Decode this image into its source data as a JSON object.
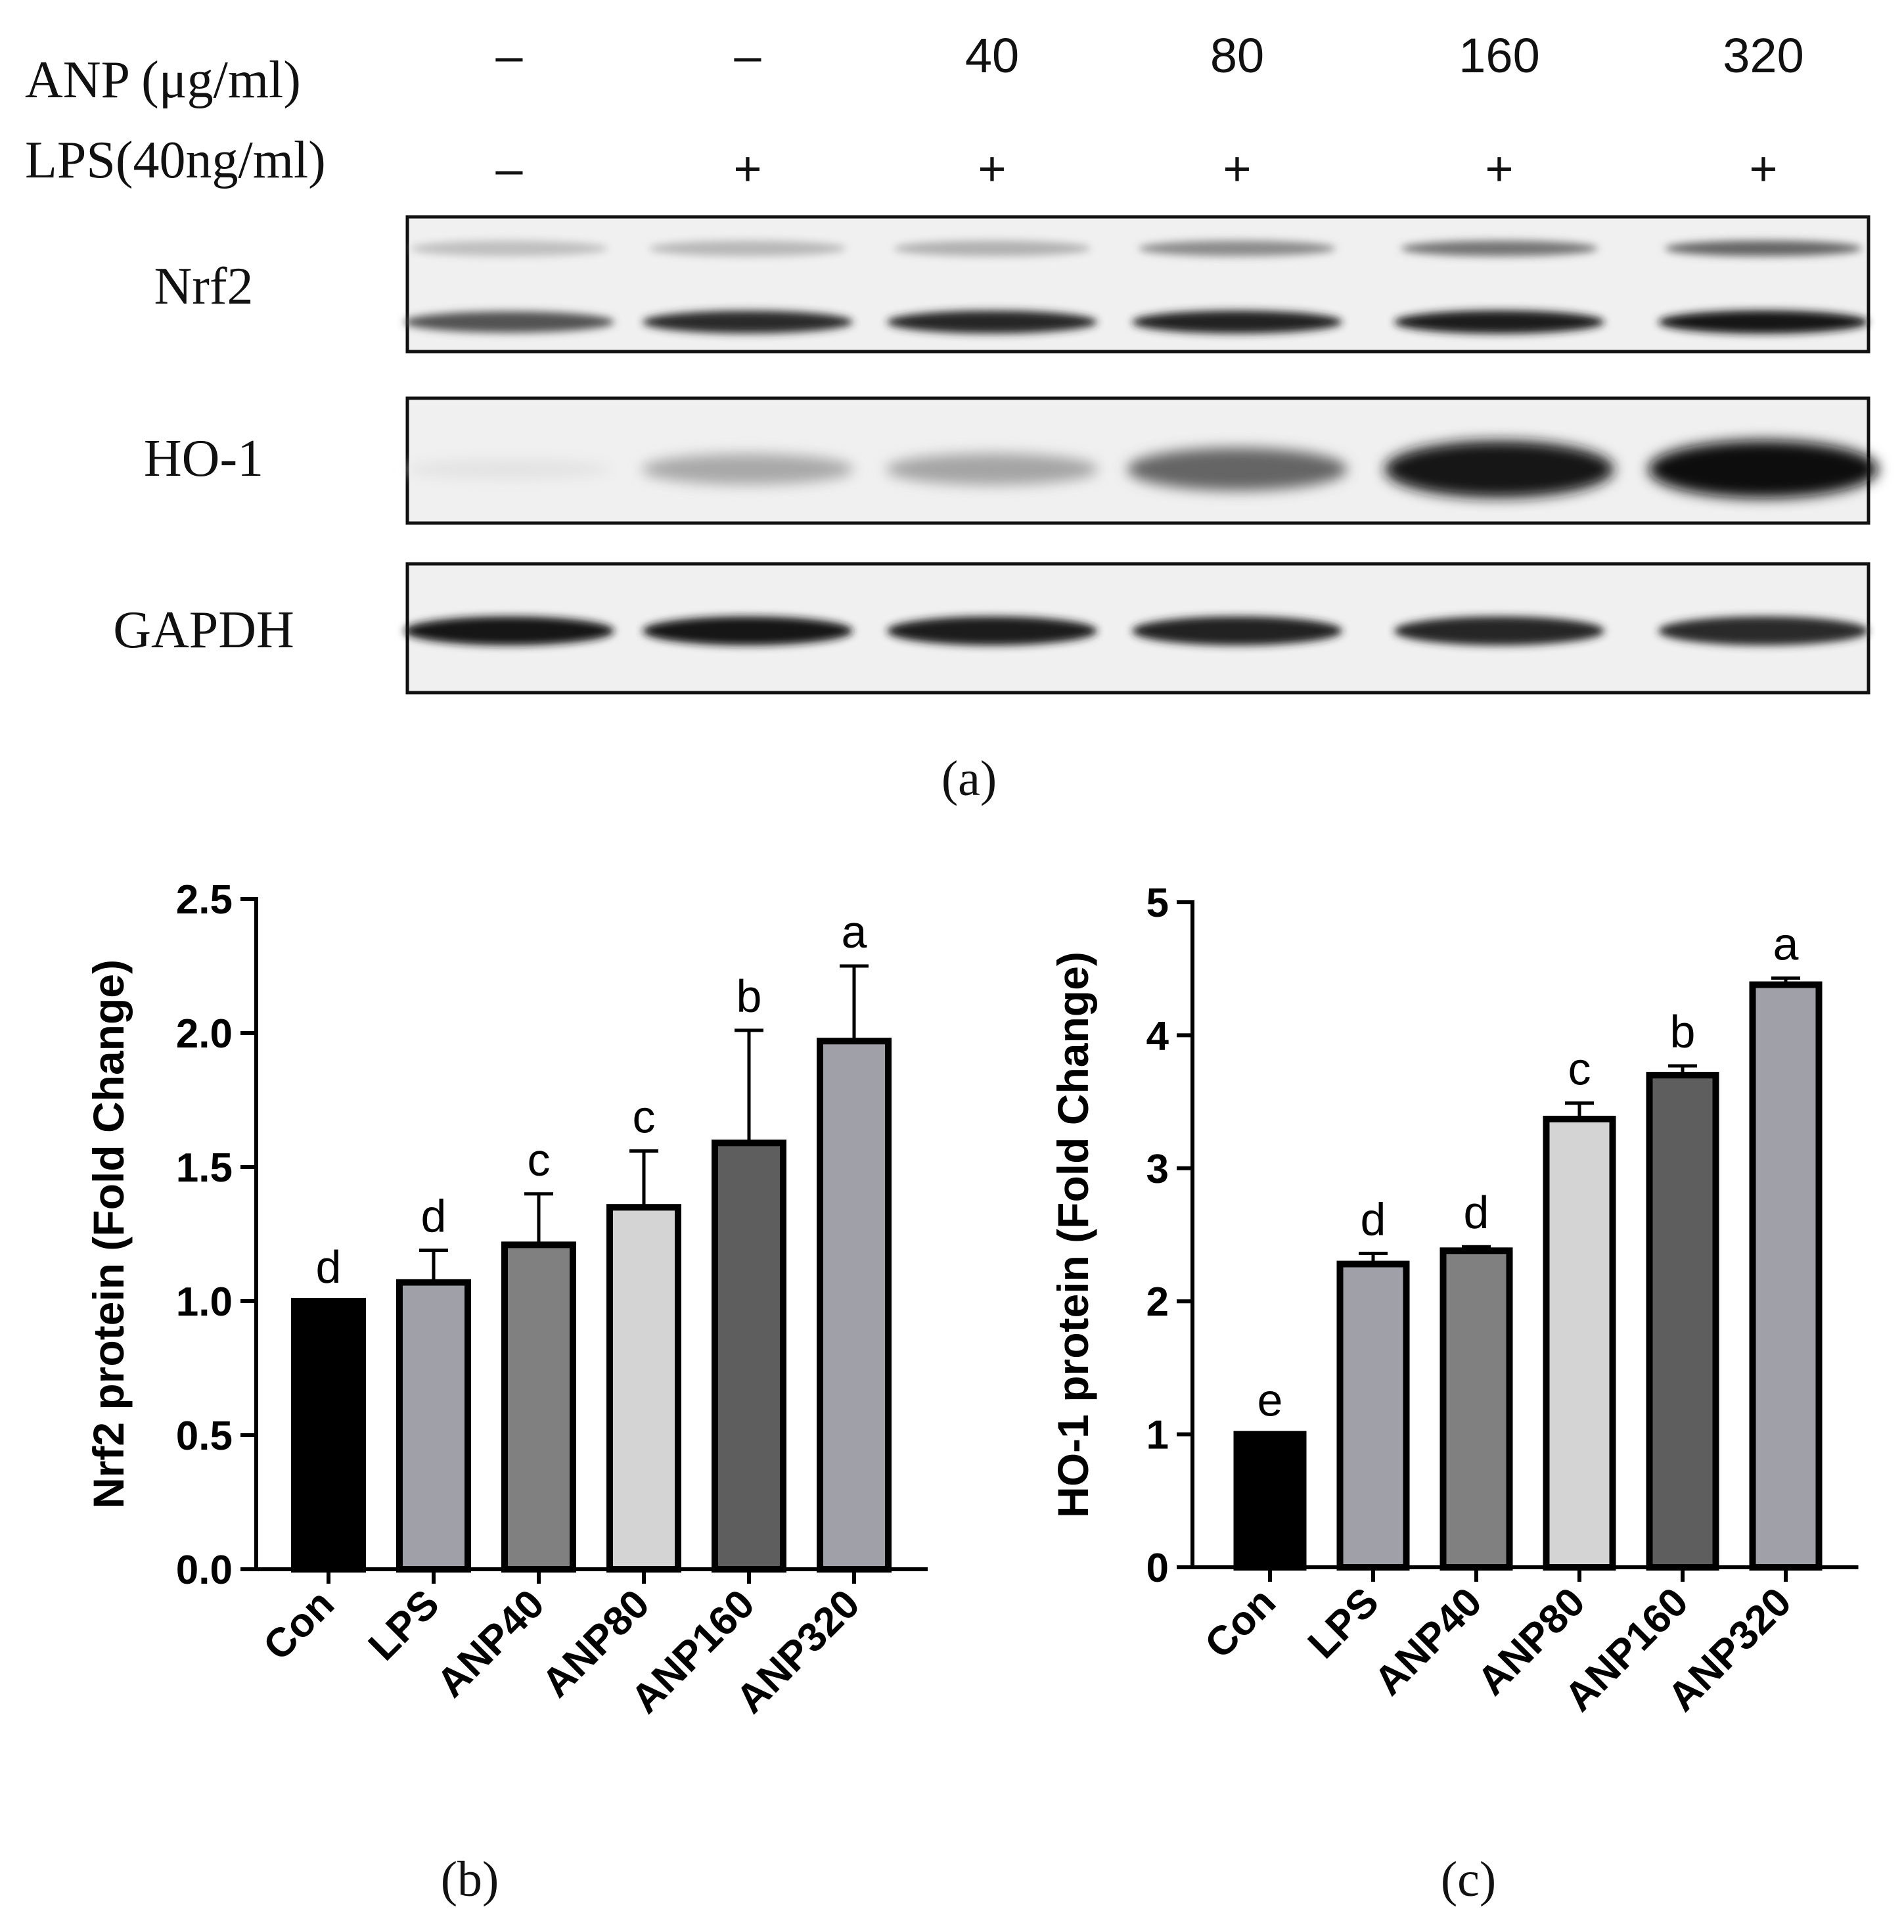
{
  "panel_a": {
    "label": "(a)",
    "row_labels": [
      "ANP (μg/ml)",
      "LPS(40ng/ml)"
    ],
    "anp_values": [
      "–",
      "–",
      "40",
      "80",
      "160",
      "320"
    ],
    "lps_values": [
      "–",
      "+",
      "+",
      "+",
      "+",
      "+"
    ],
    "blots": [
      {
        "name": "Nrf2",
        "upper_band_intensity": [
          0.22,
          0.25,
          0.28,
          0.45,
          0.55,
          0.62
        ],
        "lower_band_intensity": [
          0.7,
          0.88,
          0.9,
          0.92,
          0.95,
          0.96
        ]
      },
      {
        "name": "HO-1",
        "band_intensity": [
          0.06,
          0.32,
          0.34,
          0.62,
          0.98,
          1.0
        ]
      },
      {
        "name": "GAPDH",
        "band_intensity": [
          0.96,
          0.96,
          0.94,
          0.92,
          0.9,
          0.88
        ]
      }
    ]
  },
  "chart_data": [
    {
      "type": "bar",
      "panel_label": "(b)",
      "categories": [
        "Con",
        "LPS",
        "ANP40",
        "ANP80",
        "ANP160",
        "ANP320"
      ],
      "values": [
        1.0,
        1.07,
        1.21,
        1.35,
        1.59,
        1.97
      ],
      "errors": [
        0.0,
        0.12,
        0.19,
        0.21,
        0.42,
        0.28
      ],
      "significance": [
        "d",
        "d",
        "c",
        "c",
        "b",
        "a"
      ],
      "ylabel": "Nrf2 protein (Fold Change)",
      "xlabel": "",
      "ylim": [
        0,
        2.5
      ],
      "yticks": [
        "0.0",
        "0.5",
        "1.0",
        "1.5",
        "2.0",
        "2.5"
      ],
      "colors": [
        "#000000",
        "#a0a0a8",
        "#808080",
        "#d4d4d4",
        "#5e5e5e",
        "#a0a0a8"
      ]
    },
    {
      "type": "bar",
      "panel_label": "(c)",
      "categories": [
        "Con",
        "LPS",
        "ANP40",
        "ANP80",
        "ANP160",
        "ANP320"
      ],
      "values": [
        1.0,
        2.28,
        2.38,
        3.37,
        3.7,
        4.38
      ],
      "errors": [
        0.0,
        0.08,
        0.03,
        0.12,
        0.07,
        0.05
      ],
      "significance": [
        "e",
        "d",
        "d",
        "c",
        "b",
        "a"
      ],
      "ylabel": "HO-1 protein (Fold Change)",
      "xlabel": "",
      "ylim": [
        0,
        5
      ],
      "yticks": [
        "0",
        "1",
        "2",
        "3",
        "4",
        "5"
      ],
      "colors": [
        "#000000",
        "#a0a0a8",
        "#808080",
        "#d4d4d4",
        "#5e5e5e",
        "#a0a0a8"
      ]
    }
  ]
}
